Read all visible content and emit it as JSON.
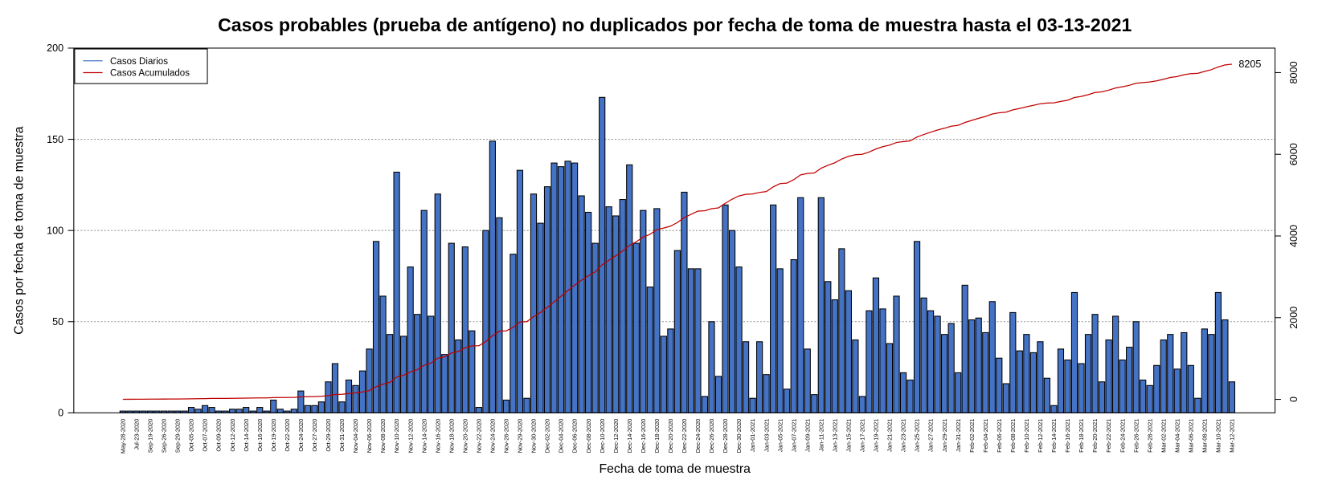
{
  "chart_data": {
    "type": "bar",
    "title": "Casos probables (prueba de antígeno) no duplicados por fecha de toma de muestra hasta el 03-13-2021",
    "x_label": "Fecha de toma de muestra",
    "y_label": "Casos por fecha de toma de muestra",
    "categories": [
      "May-28-2020",
      null,
      "Jul-23-2020",
      null,
      "Sep-19-2020",
      null,
      "Sep-26-2020",
      null,
      "Sep-29-2020",
      null,
      "Oct-05-2020",
      null,
      "Oct-07-2020",
      null,
      "Oct-09-2020",
      null,
      "Oct-12-2020",
      null,
      "Oct-14-2020",
      null,
      "Oct-16-2020",
      null,
      "Oct-19-2020",
      null,
      "Oct-22-2020",
      null,
      "Oct-24-2020",
      null,
      "Oct-27-2020",
      null,
      "Oct-29-2020",
      null,
      "Oct-31-2020",
      null,
      "Nov-04-2020",
      null,
      "Nov-06-2020",
      null,
      "Nov-08-2020",
      null,
      "Nov-10-2020",
      null,
      "Nov-12-2020",
      null,
      "Nov-14-2020",
      null,
      "Nov-16-2020",
      null,
      "Nov-18-2020",
      null,
      "Nov-20-2020",
      null,
      "Nov-22-2020",
      null,
      "Nov-24-2020",
      null,
      "Nov-26-2020",
      null,
      "Nov-29-2020",
      null,
      "Nov-30-2020",
      null,
      "Dec-02-2020",
      null,
      "Dec-04-2020",
      null,
      "Dec-06-2020",
      null,
      "Dec-08-2020",
      null,
      "Dec-10-2020",
      null,
      "Dec-12-2020",
      null,
      "Dec-14-2020",
      null,
      "Dec-16-2020",
      null,
      "Dec-18-2020",
      null,
      "Dec-20-2020",
      null,
      "Dec-22-2020",
      null,
      "Dec-24-2020",
      null,
      "Dec-26-2020",
      null,
      "Dec-28-2020",
      null,
      "Dec-30-2020",
      null,
      "Jan-01-2021",
      null,
      "Jan-03-2021",
      null,
      "Jan-05-2021",
      null,
      "Jan-07-2021",
      null,
      "Jan-09-2021",
      null,
      "Jan-11-2021",
      null,
      "Jan-13-2021",
      null,
      "Jan-15-2021",
      null,
      "Jan-17-2021",
      null,
      "Jan-19-2021",
      null,
      "Jan-21-2021",
      null,
      "Jan-23-2021",
      null,
      "Jan-25-2021",
      null,
      "Jan-27-2021",
      null,
      "Jan-29-2021",
      null,
      "Jan-31-2021",
      null,
      "Feb-02-2021",
      null,
      "Feb-04-2021",
      null,
      "Feb-06-2021",
      null,
      "Feb-08-2021",
      null,
      "Feb-10-2021",
      null,
      "Feb-12-2021",
      null,
      "Feb-14-2021",
      null,
      "Feb-16-2021",
      null,
      "Feb-18-2021",
      null,
      "Feb-20-2021",
      null,
      "Feb-22-2021",
      null,
      "Feb-24-2021",
      null,
      "Feb-26-2021",
      null,
      "Feb-28-2021",
      null,
      "Mar-02-2021",
      null,
      "Mar-04-2021",
      null,
      "Mar-06-2021",
      null,
      "Mar-08-2021",
      null,
      "Mar-10-2021",
      null,
      "Mar-12-2021"
    ],
    "series": [
      {
        "name": "Casos Diarios",
        "color": "#4472c4",
        "values": [
          1,
          1,
          1,
          1,
          1,
          1,
          1,
          1,
          1,
          1,
          3,
          2,
          4,
          3,
          1,
          1,
          2,
          2,
          3,
          1,
          3,
          1,
          7,
          2,
          1,
          2,
          12,
          4,
          4,
          6,
          17,
          27,
          6,
          18,
          15,
          23,
          35,
          94,
          64,
          43,
          132,
          42,
          80,
          54,
          111,
          53,
          120,
          32,
          93,
          40,
          91,
          45,
          3,
          100,
          149,
          107,
          7,
          87,
          133,
          8,
          120,
          104,
          124,
          137,
          135,
          138,
          137,
          119,
          110,
          93,
          173,
          113,
          108,
          117,
          136,
          93,
          111,
          69,
          112,
          42,
          46,
          89,
          121,
          79,
          79,
          9,
          50,
          20,
          114,
          100,
          80,
          39,
          8,
          39,
          21,
          114,
          79,
          13,
          84,
          118,
          35,
          10,
          118,
          72,
          62,
          90,
          67,
          40,
          9,
          56,
          74,
          57,
          38,
          64,
          22,
          18,
          94,
          63,
          56,
          53,
          43,
          49,
          22,
          70,
          51,
          52,
          44,
          61,
          30,
          16,
          55,
          34,
          43,
          33,
          39,
          19,
          4,
          35,
          29,
          66,
          27,
          43,
          54,
          17,
          40,
          53,
          29,
          36,
          50,
          18,
          15,
          26,
          40,
          43,
          24,
          44,
          26,
          8,
          46,
          43,
          66,
          51,
          17
        ]
      },
      {
        "name": "Casos Acumulados",
        "color": "#c00000",
        "type": "line",
        "axis": "y2",
        "values": [
          1,
          2,
          3,
          4,
          5,
          6,
          7,
          8,
          9,
          10,
          13,
          15,
          19,
          22,
          23,
          24,
          26,
          28,
          31,
          32,
          35,
          36,
          43,
          45,
          46,
          48,
          60,
          64,
          68,
          74,
          91,
          118,
          124,
          142,
          157,
          180,
          215,
          309,
          373,
          416,
          548,
          590,
          670,
          724,
          835,
          888,
          1008,
          1040,
          1133,
          1173,
          1264,
          1309,
          1312,
          1412,
          1561,
          1668,
          1675,
          1762,
          1895,
          1903,
          2023,
          2127,
          2251,
          2388,
          2523,
          2661,
          2798,
          2917,
          3027,
          3120,
          3293,
          3406,
          3514,
          3631,
          3767,
          3860,
          3971,
          4040,
          4152,
          4194,
          4240,
          4329,
          4450,
          4529,
          4608,
          4617,
          4667,
          4687,
          4801,
          4901,
          4981,
          5020,
          5028,
          5067,
          5088,
          5202,
          5281,
          5294,
          5378,
          5496,
          5531,
          5541,
          5659,
          5731,
          5793,
          5883,
          5950,
          5990,
          5999,
          6055,
          6129,
          6186,
          6224,
          6288,
          6310,
          6328,
          6422,
          6485,
          6541,
          6594,
          6637,
          6686,
          6708,
          6778,
          6829,
          6881,
          6925,
          6986,
          7016,
          7032,
          7087,
          7121,
          7164,
          7197,
          7236,
          7255,
          7259,
          7294,
          7323,
          7389,
          7416,
          7459,
          7513,
          7530,
          7570,
          7623,
          7652,
          7688,
          7738,
          7756,
          7771,
          7797,
          7837,
          7880,
          7904,
          7948,
          7974,
          7982,
          8028,
          8071,
          8137,
          8188,
          8205
        ]
      }
    ],
    "ylim": [
      0,
      200
    ],
    "yticks": [
      0,
      50,
      100,
      150,
      200
    ],
    "y2lim": [
      -331,
      8599
    ],
    "y2ticks": [
      0,
      2000,
      4000,
      6000,
      8000
    ],
    "grid": true,
    "legend": "top-left"
  }
}
